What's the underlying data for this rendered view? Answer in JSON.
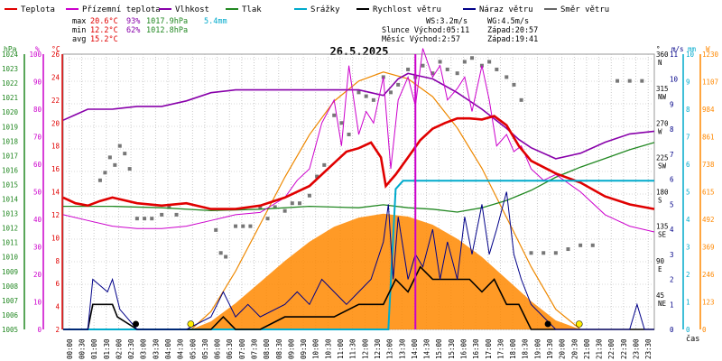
{
  "chart_data": {
    "type": "line",
    "title": "26.5.2025",
    "x_axis": {
      "label": "čas",
      "ticks": [
        "00:00",
        "00:30",
        "01:00",
        "01:30",
        "02:00",
        "02:30",
        "03:00",
        "03:30",
        "04:00",
        "04:30",
        "05:00",
        "05:30",
        "06:00",
        "06:30",
        "07:00",
        "07:30",
        "08:00",
        "08:30",
        "09:00",
        "09:30",
        "10:00",
        "10:30",
        "11:00",
        "11:30",
        "12:00",
        "12:30",
        "13:00",
        "13:30",
        "14:00",
        "14:30",
        "15:00",
        "15:30",
        "16:00",
        "16:30",
        "17:00",
        "17:30",
        "18:00",
        "18:30",
        "19:00",
        "19:30",
        "20:00",
        "20:30",
        "21:00",
        "21:30",
        "22:00",
        "22:30",
        "23:00",
        "23:30"
      ]
    },
    "legend": [
      {
        "name": "Teplota",
        "color": "#e00000"
      },
      {
        "name": "Přízemní teplota",
        "color": "#cc00cc"
      },
      {
        "name": "Vlhkost",
        "color": "#8800aa"
      },
      {
        "name": "Tlak",
        "color": "#228822"
      },
      {
        "name": "Srážky",
        "color": "#00aacc"
      },
      {
        "name": "Rychlost větru",
        "color": "#000000"
      },
      {
        "name": "Náraz větru",
        "color": "#000088"
      },
      {
        "name": "Směr větru",
        "color": "#666666"
      }
    ],
    "stats": [
      {
        "label": "max",
        "temp": "20.6°C",
        "hum": "93%",
        "press": "1017.9hPa",
        "rain": "5.4mm"
      },
      {
        "label": "min",
        "temp": "12.2°C",
        "hum": "62%",
        "press": "1012.8hPa",
        "rain": ""
      },
      {
        "label": "avg",
        "temp": "15.2°C",
        "hum": "",
        "press": "",
        "rain": ""
      }
    ],
    "info": {
      "ws": "WS:3.2m/s",
      "wg": "WG:4.5m/s",
      "sun": "Slunce Východ:05:11",
      "sun_set": "Západ:20:57",
      "moon": "Měsíc  Východ:2:57",
      "moon_set": "Západ:19:41"
    },
    "axes_left": {
      "hpa_title": "hPa",
      "pct_title": "%",
      "temp_title": "°C",
      "hpa_ticks": [
        "1024",
        "1023",
        "1022",
        "1021",
        "1020",
        "1019",
        "1018",
        "1017",
        "1016",
        "1015",
        "1014",
        "1013",
        "1012",
        "1011",
        "1010",
        "1009",
        "1008",
        "1007",
        "1006",
        "1005"
      ],
      "pct_ticks": [
        "100",
        "90",
        "80",
        "70",
        "60",
        "50",
        "40",
        "30",
        "20",
        "10",
        "0"
      ],
      "temp_ticks": [
        "26",
        "24",
        "22",
        "20",
        "18",
        "16",
        "14",
        "12",
        "10",
        "8",
        "6",
        "4",
        "2"
      ]
    },
    "axes_right": {
      "dir_title": "°",
      "ms_title": "m/s",
      "mm_title": "mm",
      "w_title": "W",
      "dir_ticks": [
        {
          "deg": "360",
          "label": "N"
        },
        {
          "deg": "315",
          "label": "NW"
        },
        {
          "deg": "270",
          "label": "W"
        },
        {
          "deg": "225",
          "label": "SW"
        },
        {
          "deg": "180",
          "label": "S"
        },
        {
          "deg": "135",
          "label": "SE"
        },
        {
          "deg": "90",
          "label": "E"
        },
        {
          "deg": "45",
          "label": "NE"
        }
      ],
      "ms_ticks": [
        "11",
        "10",
        "9",
        "8",
        "7",
        "6",
        "5",
        "4",
        "3",
        "2",
        "1",
        "0"
      ],
      "mm_ticks": [
        "10",
        "9",
        "8",
        "7",
        "6",
        "5",
        "4",
        "3",
        "2",
        "1",
        "0"
      ],
      "w_ticks": [
        "1230",
        "1107",
        "984",
        "861",
        "738",
        "615",
        "492",
        "369",
        "246",
        "123",
        "0"
      ]
    },
    "ranges": {
      "temp": [
        2,
        26
      ],
      "humidity": [
        0,
        100
      ],
      "pressure": [
        1005,
        1024
      ],
      "rain_mm": [
        0,
        10
      ],
      "wind_ms": [
        0,
        11
      ],
      "solar_w": [
        0,
        1230
      ],
      "direction_deg": [
        0,
        360
      ]
    },
    "series": {
      "temperature": {
        "hours": [
          0,
          0.5,
          1,
          1.5,
          2,
          3,
          4,
          5,
          6,
          7,
          8,
          9,
          10,
          11,
          11.5,
          12,
          12.5,
          12.9,
          13.1,
          13.5,
          14,
          14.5,
          15,
          15.5,
          16,
          16.5,
          17,
          17.5,
          18,
          18.5,
          19,
          20,
          21,
          22,
          23,
          24
        ],
        "values": [
          13.5,
          13,
          12.8,
          13.2,
          13.5,
          13,
          12.8,
          13,
          12.5,
          12.5,
          12.8,
          13.5,
          14.5,
          16.5,
          17.5,
          17.8,
          18.3,
          17,
          14.5,
          15.5,
          17,
          18.5,
          19.5,
          20,
          20.4,
          20.4,
          20.3,
          20.6,
          19.8,
          18,
          16.7,
          15.6,
          14.8,
          13.6,
          12.9,
          12.5
        ]
      },
      "ground_temperature": {
        "hours": [
          0,
          1,
          2,
          3,
          4,
          5,
          6,
          7,
          8,
          9,
          9.5,
          10,
          10.5,
          11,
          11.3,
          11.6,
          12,
          12.3,
          12.6,
          13,
          13.3,
          13.6,
          14,
          14.3,
          14.6,
          15,
          15.3,
          15.6,
          16,
          16.3,
          16.6,
          17,
          17.3,
          17.6,
          18,
          18.3,
          18.6,
          19,
          19.5,
          20,
          21,
          22,
          22.5,
          23,
          24
        ],
        "values": [
          12,
          11.5,
          11,
          10.8,
          10.8,
          11,
          11.5,
          12,
          12.2,
          13.5,
          15,
          16,
          20,
          22,
          18,
          25,
          19,
          21,
          20,
          24,
          16,
          22,
          24,
          21.5,
          26.5,
          24,
          25,
          22,
          23,
          24,
          21,
          25,
          22,
          18,
          19,
          17.5,
          18,
          16,
          15,
          15.5,
          14,
          12,
          11.5,
          11,
          10.5
        ]
      },
      "humidity": {
        "hours": [
          0,
          0.5,
          1,
          2,
          3,
          4,
          5,
          6,
          7,
          8,
          9,
          10,
          11,
          12,
          12.5,
          13,
          13.3,
          13.6,
          14,
          14.5,
          15,
          16,
          17,
          18,
          18.5,
          19,
          20,
          21,
          22,
          23,
          24
        ],
        "values": [
          76,
          78,
          80,
          80,
          81,
          81,
          83,
          86,
          87,
          87,
          87,
          87,
          87,
          87,
          86,
          85,
          88,
          91,
          93,
          92,
          91,
          86,
          80,
          73,
          69,
          66,
          62,
          64,
          68,
          71,
          72
        ]
      },
      "pressure": {
        "hours": [
          0,
          2,
          4,
          6,
          8,
          10,
          12,
          13,
          14,
          15,
          16,
          17,
          18,
          19,
          20,
          21,
          22,
          23,
          24
        ],
        "values": [
          1013.5,
          1013.5,
          1013.4,
          1013.2,
          1013.3,
          1013.5,
          1013.4,
          1013.6,
          1013.4,
          1013.3,
          1013.1,
          1013.4,
          1013.9,
          1014.6,
          1015.5,
          1016.2,
          1016.8,
          1017.4,
          1017.9
        ]
      },
      "rain_cumulative_mm": {
        "hours": [
          0,
          13.2,
          13.5,
          13.8,
          24
        ],
        "values": [
          0,
          0,
          5.1,
          5.4,
          5.4
        ]
      },
      "solar": {
        "hours": [
          5.2,
          6,
          7,
          8,
          9,
          10,
          11,
          12,
          13,
          14,
          15,
          16,
          17,
          18,
          19,
          20,
          21
        ],
        "values": [
          0,
          80,
          260,
          470,
          680,
          870,
          1020,
          1110,
          1150,
          1120,
          1040,
          900,
          720,
          500,
          280,
          90,
          0
        ]
      },
      "wind_speed": {
        "hours": [
          0,
          1,
          1.2,
          2,
          2.2,
          3,
          3.5,
          4,
          5,
          6,
          6.5,
          7,
          8,
          9,
          10,
          11,
          12,
          13,
          13.5,
          14,
          14.5,
          15,
          15.5,
          16,
          16.5,
          17,
          17.5,
          18,
          18.5,
          19,
          20,
          21,
          22,
          23,
          24
        ],
        "values": [
          0,
          0,
          1,
          1,
          0.5,
          0,
          0,
          0,
          0,
          0,
          0.5,
          0,
          0,
          0.5,
          0.5,
          0.5,
          1,
          1,
          2,
          1.5,
          2.5,
          2,
          2,
          2,
          2,
          1.5,
          2,
          1,
          1,
          0,
          0,
          0,
          0,
          0,
          0
        ]
      },
      "wind_gust": {
        "hours": [
          0,
          1,
          1.2,
          1.8,
          2,
          2.3,
          3,
          3.5,
          4,
          5,
          6,
          6.5,
          7,
          7.5,
          8,
          9,
          9.5,
          10,
          10.5,
          11,
          11.5,
          12,
          12.5,
          13,
          13.2,
          13.4,
          13.6,
          14,
          14.3,
          14.6,
          15,
          15.3,
          15.6,
          16,
          16.3,
          16.6,
          17,
          17.3,
          17.6,
          18,
          18.3,
          18.6,
          19,
          20,
          21,
          22,
          23,
          23.3,
          23.6,
          24
        ],
        "values": [
          0,
          0,
          2,
          1.5,
          2,
          0.8,
          0,
          0,
          0,
          0,
          0.5,
          1.5,
          0.5,
          1,
          0.5,
          1,
          1.5,
          1,
          2,
          1.5,
          1,
          1.5,
          2,
          3.5,
          5,
          2,
          4.5,
          2,
          3,
          2.5,
          4,
          2,
          3.5,
          2,
          4.5,
          3,
          5,
          3,
          4,
          5.5,
          3,
          2,
          1,
          0,
          0,
          0,
          0,
          1,
          0,
          0
        ]
      },
      "wind_direction_deg": [
        {
          "h": 1.5,
          "deg": 195
        },
        {
          "h": 1.7,
          "deg": 205
        },
        {
          "h": 1.9,
          "deg": 225
        },
        {
          "h": 2.1,
          "deg": 215
        },
        {
          "h": 2.3,
          "deg": 240
        },
        {
          "h": 2.5,
          "deg": 230
        },
        {
          "h": 2.7,
          "deg": 210
        },
        {
          "h": 3.0,
          "deg": 145
        },
        {
          "h": 3.3,
          "deg": 145
        },
        {
          "h": 3.6,
          "deg": 145
        },
        {
          "h": 4.0,
          "deg": 150
        },
        {
          "h": 4.3,
          "deg": 160
        },
        {
          "h": 4.6,
          "deg": 150
        },
        {
          "h": 6.2,
          "deg": 130
        },
        {
          "h": 6.4,
          "deg": 100
        },
        {
          "h": 6.6,
          "deg": 95
        },
        {
          "h": 7.0,
          "deg": 135
        },
        {
          "h": 7.3,
          "deg": 135
        },
        {
          "h": 7.6,
          "deg": 135
        },
        {
          "h": 8.0,
          "deg": 160
        },
        {
          "h": 8.3,
          "deg": 145
        },
        {
          "h": 8.6,
          "deg": 160
        },
        {
          "h": 9.0,
          "deg": 155
        },
        {
          "h": 9.3,
          "deg": 165
        },
        {
          "h": 9.6,
          "deg": 165
        },
        {
          "h": 10.0,
          "deg": 175
        },
        {
          "h": 10.3,
          "deg": 200
        },
        {
          "h": 10.6,
          "deg": 215
        },
        {
          "h": 11.0,
          "deg": 280
        },
        {
          "h": 11.3,
          "deg": 270
        },
        {
          "h": 11.6,
          "deg": 255
        },
        {
          "h": 12.0,
          "deg": 310
        },
        {
          "h": 12.3,
          "deg": 305
        },
        {
          "h": 12.6,
          "deg": 300
        },
        {
          "h": 13.0,
          "deg": 330
        },
        {
          "h": 13.3,
          "deg": 310
        },
        {
          "h": 13.6,
          "deg": 320
        },
        {
          "h": 14.0,
          "deg": 340
        },
        {
          "h": 14.3,
          "deg": 330
        },
        {
          "h": 14.6,
          "deg": 345
        },
        {
          "h": 15.0,
          "deg": 335
        },
        {
          "h": 15.3,
          "deg": 350
        },
        {
          "h": 15.6,
          "deg": 340
        },
        {
          "h": 16.0,
          "deg": 335
        },
        {
          "h": 16.3,
          "deg": 350
        },
        {
          "h": 16.6,
          "deg": 355
        },
        {
          "h": 17.0,
          "deg": 345
        },
        {
          "h": 17.3,
          "deg": 350
        },
        {
          "h": 17.6,
          "deg": 340
        },
        {
          "h": 18.0,
          "deg": 330
        },
        {
          "h": 18.3,
          "deg": 320
        },
        {
          "h": 18.6,
          "deg": 300
        },
        {
          "h": 19.0,
          "deg": 100
        },
        {
          "h": 19.5,
          "deg": 100
        },
        {
          "h": 20.0,
          "deg": 100
        },
        {
          "h": 20.5,
          "deg": 105
        },
        {
          "h": 21.0,
          "deg": 110
        },
        {
          "h": 21.5,
          "deg": 110
        },
        {
          "h": 22.5,
          "deg": 325
        },
        {
          "h": 23.0,
          "deg": 325
        },
        {
          "h": 23.5,
          "deg": 325
        }
      ],
      "sun_events": [
        {
          "h": 5.18,
          "kind": "sunrise"
        },
        {
          "h": 20.95,
          "kind": "sunset"
        }
      ],
      "moon_events": [
        {
          "h": 2.95,
          "kind": "moonrise"
        },
        {
          "h": 19.68,
          "kind": "moonset"
        }
      ],
      "marker_hour": 14.3
    }
  }
}
